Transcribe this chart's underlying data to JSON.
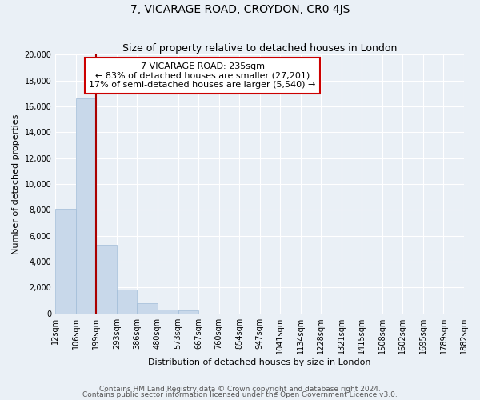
{
  "title": "7, VICARAGE ROAD, CROYDON, CR0 4JS",
  "subtitle": "Size of property relative to detached houses in London",
  "xlabel": "Distribution of detached houses by size in London",
  "ylabel": "Number of detached properties",
  "bin_labels": [
    "12sqm",
    "106sqm",
    "199sqm",
    "293sqm",
    "386sqm",
    "480sqm",
    "573sqm",
    "667sqm",
    "760sqm",
    "854sqm",
    "947sqm",
    "1041sqm",
    "1134sqm",
    "1228sqm",
    "1321sqm",
    "1415sqm",
    "1508sqm",
    "1602sqm",
    "1695sqm",
    "1789sqm",
    "1882sqm"
  ],
  "bar_values": [
    8100,
    16600,
    5300,
    1800,
    800,
    280,
    200,
    0,
    0,
    0,
    0,
    0,
    0,
    0,
    0,
    0,
    0,
    0,
    0,
    0
  ],
  "bar_color": "#c8d8ea",
  "bar_edge_color": "#a0bcd8",
  "vline_x": 2,
  "vline_color": "#aa0000",
  "annotation_text": "7 VICARAGE ROAD: 235sqm\n← 83% of detached houses are smaller (27,201)\n17% of semi-detached houses are larger (5,540) →",
  "annotation_box_color": "#ffffff",
  "annotation_box_edge": "#cc0000",
  "ylim": [
    0,
    20000
  ],
  "yticks": [
    0,
    2000,
    4000,
    6000,
    8000,
    10000,
    12000,
    14000,
    16000,
    18000,
    20000
  ],
  "footer_line1": "Contains HM Land Registry data © Crown copyright and database right 2024.",
  "footer_line2": "Contains public sector information licensed under the Open Government Licence v3.0.",
  "bg_color": "#eaf0f6",
  "plot_bg_color": "#eaf0f6",
  "grid_color": "#ffffff",
  "title_fontsize": 10,
  "subtitle_fontsize": 9,
  "axis_label_fontsize": 8,
  "tick_fontsize": 7,
  "footer_fontsize": 6.5,
  "annotation_fontsize": 8
}
